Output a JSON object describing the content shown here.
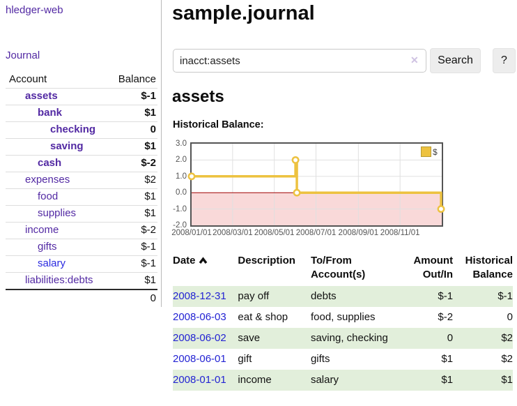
{
  "app": {
    "title": "hledger-web",
    "nav_journal": "Journal"
  },
  "sidebar": {
    "header": {
      "account": "Account",
      "balance": "Balance"
    },
    "accounts": [
      {
        "name": "assets",
        "balance": "$-1",
        "name_class": "lvl1 bold purple",
        "balance_class": "bold neg"
      },
      {
        "name": "bank",
        "balance": "$1",
        "name_class": "lvl2 bold purple",
        "balance_class": "bold"
      },
      {
        "name": "checking",
        "balance": "0",
        "name_class": "lvl3 bold purple",
        "balance_class": "bold"
      },
      {
        "name": "saving",
        "balance": "$1",
        "name_class": "lvl3 bold purple",
        "balance_class": "bold"
      },
      {
        "name": "cash",
        "balance": "$-2",
        "name_class": "lvl2 bold purple",
        "balance_class": "bold neg"
      },
      {
        "name": "expenses",
        "balance": "$2",
        "name_class": "lvl1 purple",
        "balance_class": ""
      },
      {
        "name": "food",
        "balance": "$1",
        "name_class": "lvl2 purple",
        "balance_class": ""
      },
      {
        "name": "supplies",
        "balance": "$1",
        "name_class": "lvl2 purple",
        "balance_class": ""
      },
      {
        "name": "income",
        "balance": "$-2",
        "name_class": "lvl1 purple",
        "balance_class": "neg-light"
      },
      {
        "name": "gifts",
        "balance": "$-1",
        "name_class": "lvl2 purple",
        "balance_class": "neg-light"
      },
      {
        "name": "salary",
        "balance": "$-1",
        "name_class": "lvl2 blue",
        "balance_class": "neg-light"
      },
      {
        "name": "liabilities:debts",
        "balance": "$1",
        "name_class": "lvl1 purple",
        "balance_class": ""
      }
    ],
    "total": "0"
  },
  "main": {
    "title": "sample.journal",
    "search": {
      "value": "inacct:assets",
      "clear_icon": "✕",
      "button_label": "Search",
      "help_label": "?"
    },
    "account_heading": "assets",
    "chart_label": "Historical Balance:"
  },
  "chart_data": {
    "type": "line",
    "step": true,
    "title": "Historical Balance:",
    "series": [
      {
        "name": "$",
        "color": "#edc240",
        "points": [
          [
            "2008-01-01",
            1
          ],
          [
            "2008-06-01",
            2
          ],
          [
            "2008-06-03",
            0
          ],
          [
            "2008-12-31",
            -1
          ]
        ]
      }
    ],
    "xlim": [
      "2008-01-01",
      "2009-01-01"
    ],
    "ylim": [
      -2,
      3
    ],
    "x_ticks": [
      {
        "date": "2008-01-01",
        "label": "2008/01/01"
      },
      {
        "date": "2008-03-01",
        "label": "2008/03/01"
      },
      {
        "date": "2008-05-01",
        "label": "2008/05/01"
      },
      {
        "date": "2008-07-01",
        "label": "2008/07/01"
      },
      {
        "date": "2008-09-01",
        "label": "2008/09/01"
      },
      {
        "date": "2008-11-01",
        "label": "2008/11/01"
      }
    ],
    "y_ticks": [
      {
        "value": 3,
        "label": "3.0"
      },
      {
        "value": 2,
        "label": "2.0"
      },
      {
        "value": 1,
        "label": "1.0"
      },
      {
        "value": 0,
        "label": "0.0"
      },
      {
        "value": -1,
        "label": "-1.0"
      },
      {
        "value": -2,
        "label": "-2.0"
      }
    ],
    "grid": true,
    "legend_position": "top-right",
    "colors": {
      "line": "#edc240",
      "marker_fill": "#ffffff",
      "grid": "#e0e0e0",
      "zero_line": "#a00000",
      "negative_region": "#f9d9d9",
      "border": "#545454"
    }
  },
  "register": {
    "headers": {
      "date": "Date",
      "description": "Description",
      "accounts": "To/From Account(s)",
      "amount": "Amount Out/In",
      "balance": "Historical Balance"
    },
    "rows": [
      {
        "date": "2008-12-31",
        "description": "pay off",
        "accounts": "debts",
        "amount": "$-1",
        "balance": "$-1",
        "amount_class": "neg",
        "balance_class": "neg"
      },
      {
        "date": "2008-06-03",
        "description": "eat & shop",
        "accounts": "food, supplies",
        "amount": "$-2",
        "balance": "0",
        "amount_class": "neg",
        "balance_class": ""
      },
      {
        "date": "2008-06-02",
        "description": "save",
        "accounts": "saving, checking",
        "amount": "0",
        "balance": "$2",
        "amount_class": "",
        "balance_class": ""
      },
      {
        "date": "2008-06-01",
        "description": "gift",
        "accounts": "gifts",
        "amount": "$1",
        "balance": "$2",
        "amount_class": "",
        "balance_class": ""
      },
      {
        "date": "2008-01-01",
        "description": "income",
        "accounts": "salary",
        "amount": "$1",
        "balance": "$1",
        "amount_class": "",
        "balance_class": ""
      }
    ]
  }
}
